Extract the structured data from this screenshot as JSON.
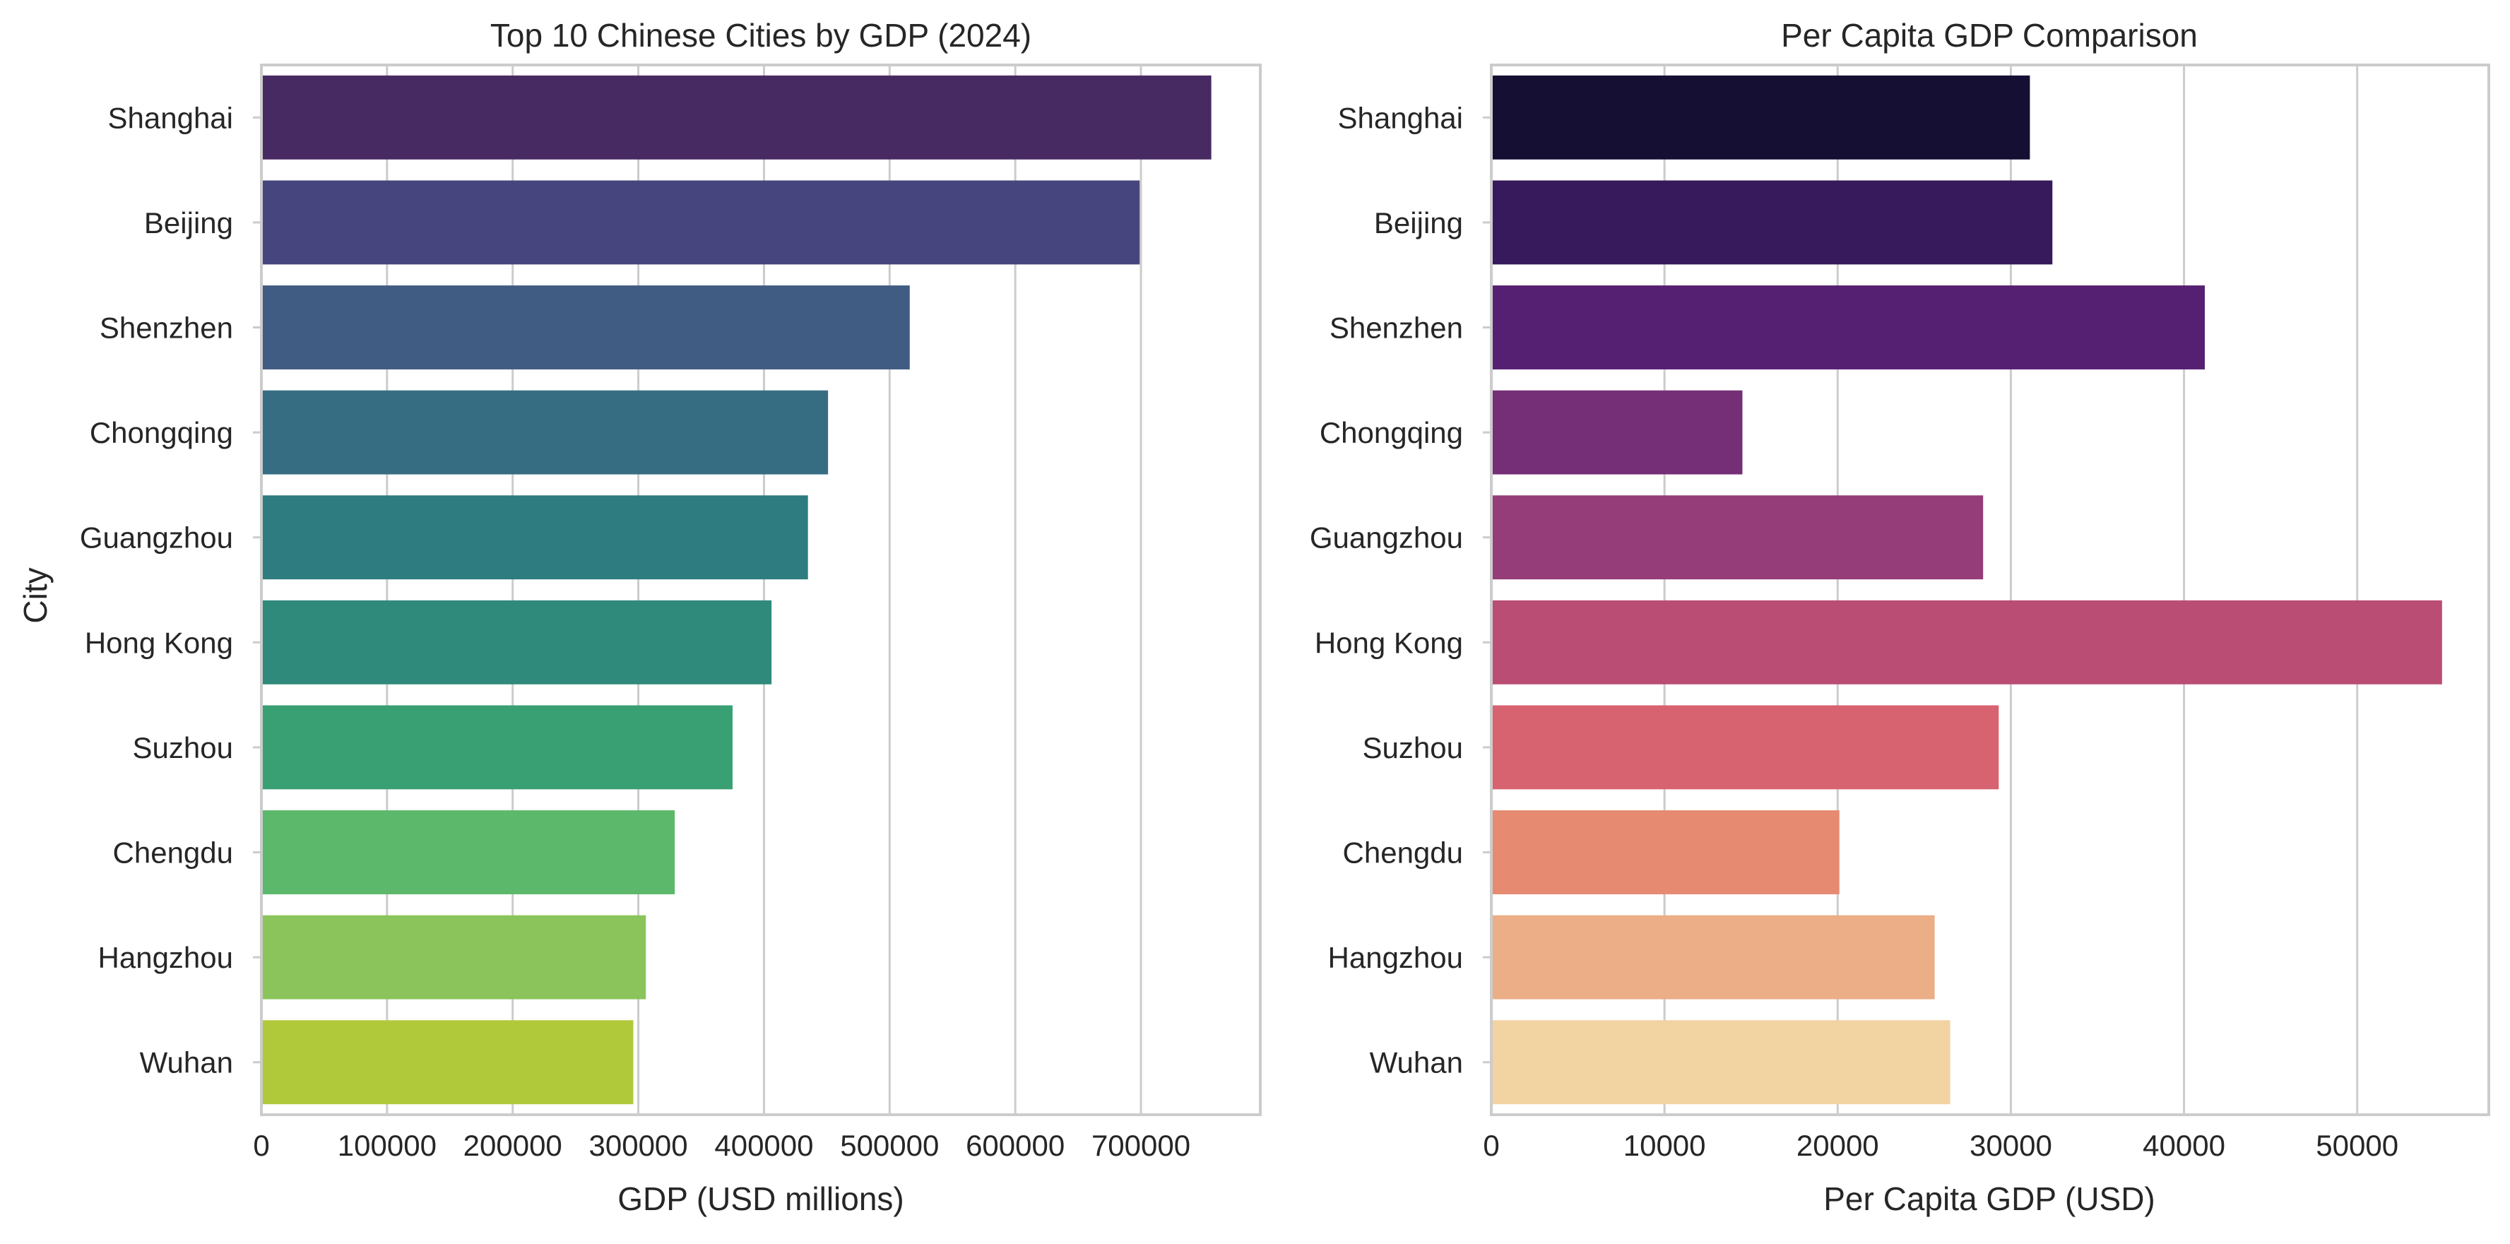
{
  "chart_data": [
    {
      "type": "bar",
      "orientation": "horizontal",
      "title": "Top 10 Chinese Cities by GDP (2024)",
      "xlabel": "GDP (USD millions)",
      "ylabel": "City",
      "categories": [
        "Shanghai",
        "Beijing",
        "Shenzhen",
        "Chongqing",
        "Guangzhou",
        "Hong Kong",
        "Suzhou",
        "Chengdu",
        "Hangzhou",
        "Wuhan"
      ],
      "values": [
        756000,
        699000,
        516000,
        451000,
        435000,
        406000,
        375000,
        329000,
        306000,
        296000
      ],
      "xlim": [
        0,
        795000
      ],
      "xticks": [
        0,
        100000,
        200000,
        300000,
        400000,
        500000,
        600000,
        700000
      ],
      "xtick_labels": [
        "0",
        "100000",
        "200000",
        "300000",
        "400000",
        "500000",
        "600000",
        "700000"
      ],
      "grid": "vertical",
      "palette": "viridis",
      "colors": [
        "#482a62",
        "#47457e",
        "#415c82",
        "#376d82",
        "#2e7c7f",
        "#2f8a7c",
        "#39a074",
        "#5cb86b",
        "#8ac45a",
        "#b0c93a"
      ]
    },
    {
      "type": "bar",
      "orientation": "horizontal",
      "title": "Per Capita GDP Comparison",
      "xlabel": "Per Capita GDP (USD)",
      "ylabel": "",
      "categories": [
        "Shanghai",
        "Beijing",
        "Shenzhen",
        "Chongqing",
        "Guangzhou",
        "Hong Kong",
        "Suzhou",
        "Chengdu",
        "Hangzhou",
        "Wuhan"
      ],
      "values": [
        31100,
        32400,
        41200,
        14500,
        28400,
        54900,
        29300,
        20100,
        25600,
        26500
      ],
      "xlim": [
        0,
        57600
      ],
      "xticks": [
        0,
        10000,
        20000,
        30000,
        40000,
        50000
      ],
      "xtick_labels": [
        "0",
        "10000",
        "20000",
        "30000",
        "40000",
        "50000"
      ],
      "grid": "vertical",
      "palette": "magma",
      "colors": [
        "#140f33",
        "#361a5b",
        "#552072",
        "#752f76",
        "#953d78",
        "#ba4d74",
        "#d6636f",
        "#e68a72",
        "#ebae87",
        "#f2d3a2"
      ]
    }
  ]
}
